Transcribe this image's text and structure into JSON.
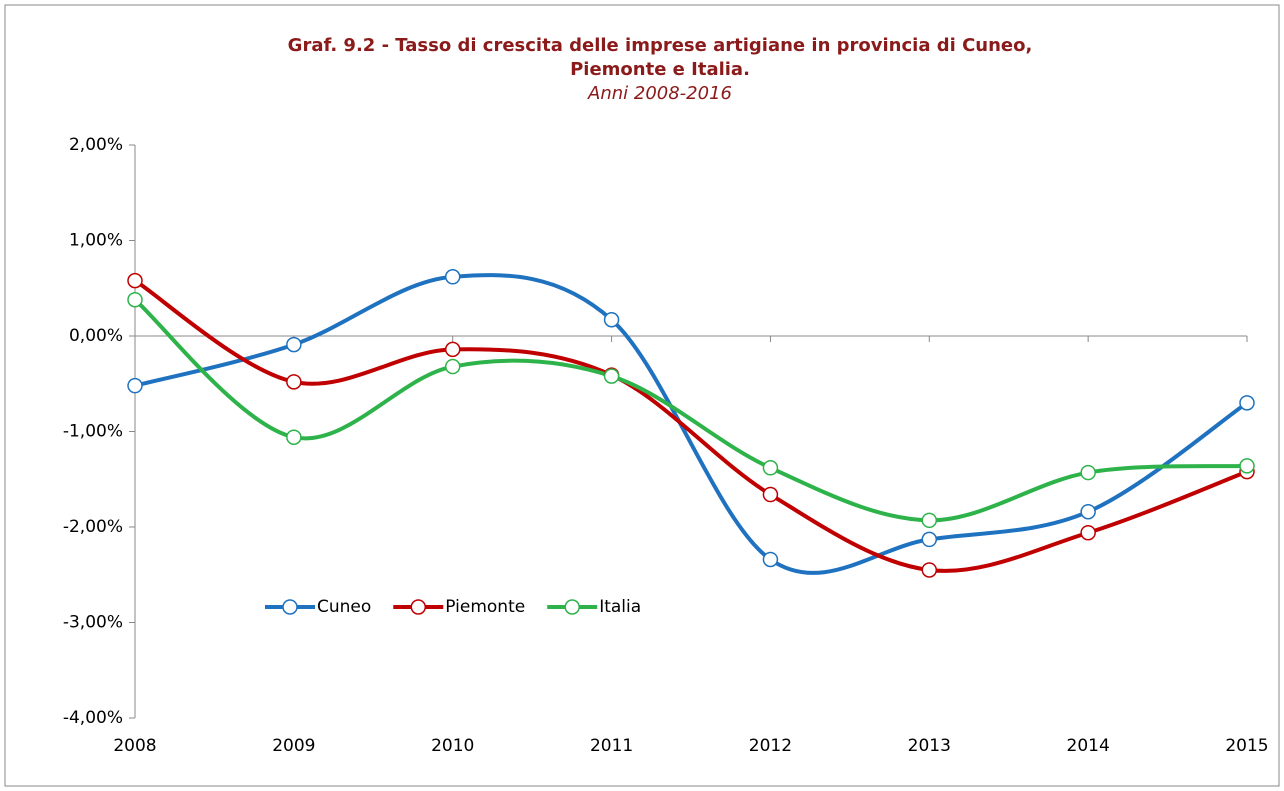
{
  "chart_data": {
    "type": "line",
    "title": [
      "Graf. 9.2 - Tasso di crescita delle imprese artigiane in provincia di Cuneo,",
      "Piemonte e Italia."
    ],
    "subtitle": "Anni 2008-2016",
    "categories": [
      "2008",
      "2009",
      "2010",
      "2011",
      "2012",
      "2013",
      "2014",
      "2015"
    ],
    "series": [
      {
        "name": "Cuneo",
        "color": "#1f72c0",
        "values": [
          -0.52,
          -0.09,
          0.62,
          0.17,
          -2.34,
          -2.13,
          -1.84,
          -0.7
        ]
      },
      {
        "name": "Piemonte",
        "color": "#c00000",
        "values": [
          0.58,
          -0.48,
          -0.14,
          -0.41,
          -1.66,
          -2.45,
          -2.06,
          -1.42
        ]
      },
      {
        "name": "Italia",
        "color": "#2eb34a",
        "values": [
          0.38,
          -1.06,
          -0.32,
          -0.42,
          -1.38,
          -1.93,
          -1.43,
          -1.36
        ]
      }
    ],
    "ylim": [
      -4,
      2
    ],
    "yticks": [
      {
        "value": -4,
        "label": "-4,00%"
      },
      {
        "value": -3,
        "label": "-3,00%"
      },
      {
        "value": -2,
        "label": "-2,00%"
      },
      {
        "value": -1,
        "label": "-1,00%"
      },
      {
        "value": 0,
        "label": "0,00%"
      },
      {
        "value": 1,
        "label": "1,00%"
      },
      {
        "value": 2,
        "label": "2,00%"
      }
    ],
    "smooth": true,
    "legend": "inside"
  }
}
